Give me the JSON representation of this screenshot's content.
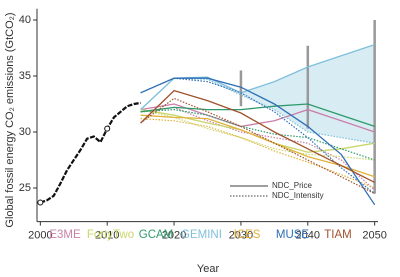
{
  "chart_data": {
    "type": "line",
    "x_label": "Year",
    "y_label": "Global fossil energy CO₂ emissions (GtCO₂)",
    "xlim": [
      1999.5,
      2050.5
    ],
    "ylim": [
      22,
      41
    ],
    "xticks": [
      2000,
      2010,
      2020,
      2030,
      2040,
      2050
    ],
    "yticks": [
      25,
      30,
      35,
      40
    ],
    "line_styles": [
      "NDC_Price",
      "NDC_Intensity"
    ],
    "historical": {
      "color": "#111111",
      "x": [
        2000,
        2001,
        2002,
        2003,
        2004,
        2005,
        2006,
        2007,
        2008,
        2009,
        2010,
        2011,
        2012,
        2013,
        2014,
        2015
      ],
      "values": [
        23.7,
        23.9,
        24.3,
        25.4,
        26.6,
        27.5,
        28.4,
        29.4,
        29.6,
        29.1,
        30.3,
        31.3,
        31.8,
        32.3,
        32.5,
        32.6
      ]
    },
    "x": [
      2015,
      2020,
      2025,
      2030,
      2035,
      2040,
      2045,
      2050
    ],
    "series": [
      {
        "name": "E3ME",
        "color": "#c97fa8",
        "values": [
          32.0,
          32.5,
          31.5,
          30.5,
          31.0,
          32.0,
          31.0,
          30.0
        ],
        "intensity_values": [
          31.8,
          32.2,
          31.0,
          30.0,
          29.5,
          29.0,
          27.5,
          24.8
        ]
      },
      {
        "name": "FortyTwo",
        "color": "#c9d66a",
        "values": [
          32.0,
          31.5,
          30.8,
          30.2,
          29.0,
          28.2,
          28.5,
          29.0
        ],
        "intensity_values": [
          32.0,
          31.3,
          30.3,
          29.5,
          28.5,
          28.0,
          27.8,
          27.5
        ]
      },
      {
        "name": "GCAM",
        "color": "#2e9a6b",
        "values": [
          31.8,
          32.2,
          32.0,
          32.0,
          32.3,
          32.5,
          31.5,
          30.5
        ],
        "intensity_values": [
          31.8,
          32.0,
          31.5,
          30.5,
          29.8,
          29.5,
          28.5,
          27.5
        ]
      },
      {
        "name": "GEMINI",
        "color": "#7fbfdc",
        "values": [
          32.0,
          34.8,
          34.9,
          33.5,
          34.5,
          35.8,
          36.8,
          37.8
        ],
        "intensity_values": [
          32.0,
          34.8,
          34.7,
          33.3,
          32.0,
          30.0,
          29.5,
          29.0
        ],
        "band": true
      },
      {
        "name": "ICES",
        "color": "#e0b23a",
        "values": [
          31.5,
          31.3,
          31.2,
          30.2,
          29.0,
          27.8,
          27.0,
          26.0
        ],
        "intensity_values": [
          31.2,
          31.0,
          30.5,
          29.5,
          28.3,
          27.3,
          26.2,
          25.0
        ]
      },
      {
        "name": "MUSE",
        "color": "#2f6fb5",
        "values": [
          33.5,
          34.8,
          34.8,
          34.0,
          32.5,
          30.5,
          28.0,
          23.5
        ],
        "intensity_values": [
          33.5,
          34.8,
          34.5,
          33.5,
          31.8,
          29.5,
          26.8,
          24.5
        ]
      },
      {
        "name": "TIAM",
        "color": "#a0522d",
        "values": [
          30.8,
          33.7,
          32.8,
          31.7,
          30.0,
          28.5,
          27.0,
          25.5
        ],
        "intensity_values": [
          30.8,
          33.0,
          31.8,
          30.5,
          29.0,
          27.5,
          26.0,
          24.5
        ]
      }
    ],
    "ranges": {
      "color": "#999999",
      "x": [
        2030,
        2040,
        2050
      ],
      "low": [
        32.3,
        30.3,
        24.5
      ],
      "high": [
        35.5,
        37.7,
        40.0
      ]
    }
  }
}
